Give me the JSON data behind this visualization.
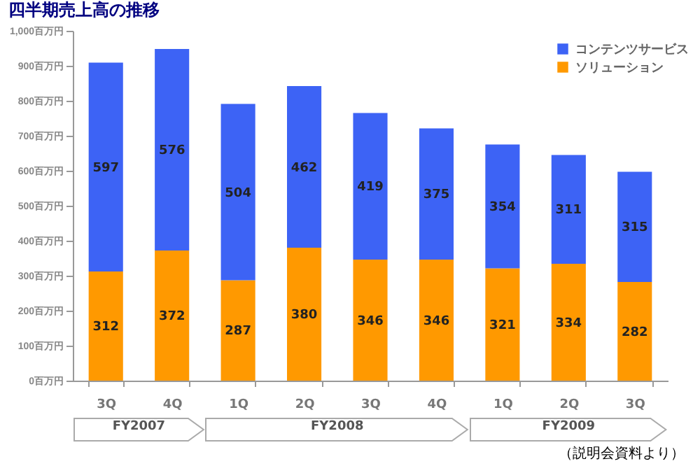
{
  "chart_data": {
    "type": "bar",
    "title": "四半期売上高の推移",
    "categories": [
      "3Q",
      "4Q",
      "1Q",
      "2Q",
      "3Q",
      "4Q",
      "1Q",
      "2Q",
      "3Q"
    ],
    "stacked": true,
    "data_labels": true,
    "legend": "top right",
    "grid": false,
    "series": [
      {
        "name": "ソリューション",
        "color": "#ff9900",
        "values": [
          312,
          372,
          287,
          380,
          346,
          346,
          321,
          334,
          282
        ]
      },
      {
        "name": "コンテンツサービス",
        "color": "#3d63f5",
        "values": [
          597,
          576,
          504,
          462,
          419,
          375,
          354,
          311,
          315
        ]
      }
    ],
    "ylim": [
      0,
      1000
    ],
    "yticks": [
      {
        "value": 0,
        "label": "0百万円"
      },
      {
        "value": 100,
        "label": "100百万円"
      },
      {
        "value": 200,
        "label": "200百万円"
      },
      {
        "value": 300,
        "label": "300百万円"
      },
      {
        "value": 400,
        "label": "400百万円"
      },
      {
        "value": 500,
        "label": "500百万円"
      },
      {
        "value": 600,
        "label": "600百万円"
      },
      {
        "value": 700,
        "label": "700百万円"
      },
      {
        "value": 800,
        "label": "800百万円"
      },
      {
        "value": 900,
        "label": "900百万円"
      },
      {
        "value": 1000,
        "label": "1,000百万円"
      }
    ],
    "annotations": [
      "FY2007",
      "FY2008",
      "FY2009",
      "（説明会資料より）"
    ]
  }
}
